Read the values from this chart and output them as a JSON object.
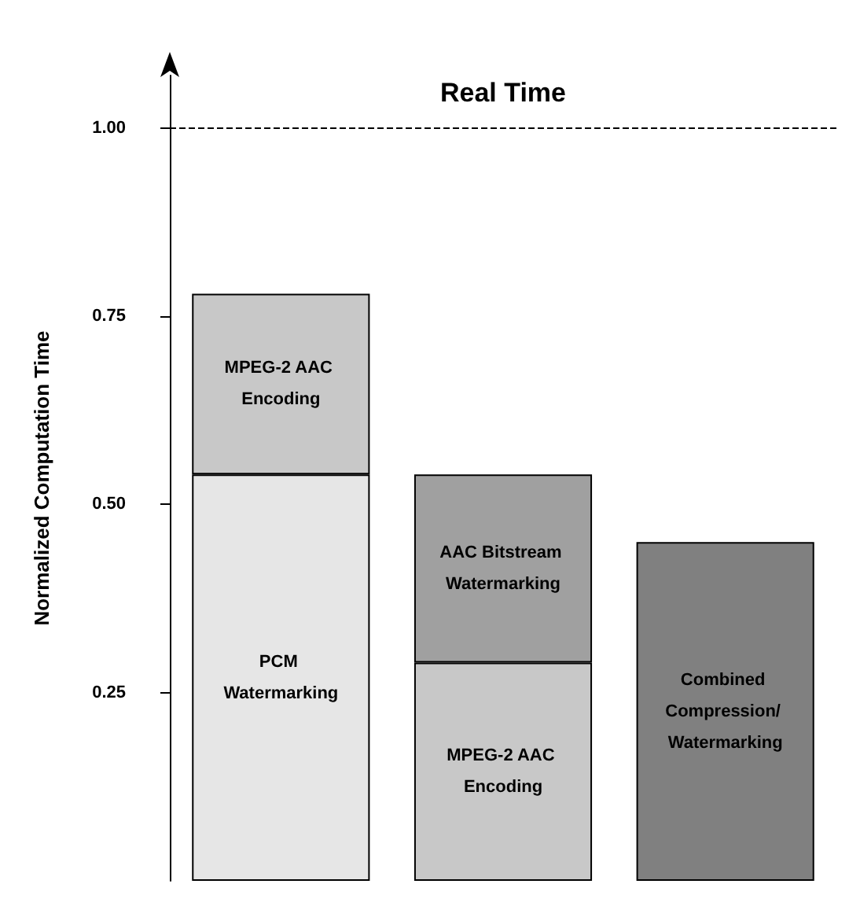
{
  "chart_data": {
    "type": "bar",
    "stacked": true,
    "ylabel": "Normalized Computation Time",
    "categories": [
      null,
      null,
      null
    ],
    "series": [
      {
        "name": "PCM Watermarking",
        "color": "#e6e6e6",
        "values": [
          0.54,
          null,
          null
        ]
      },
      {
        "name": "MPEG-2 AAC Encoding",
        "color": "#c8c8c8",
        "values": [
          0.24,
          0.29,
          null
        ]
      },
      {
        "name": "AAC Bitstream Watermarking",
        "color": "#a0a0a0",
        "values": [
          null,
          0.25,
          null
        ]
      },
      {
        "name": "Combined Compression/ Watermarking",
        "color": "#808080",
        "values": [
          null,
          null,
          0.45
        ]
      }
    ],
    "ylim": [
      0,
      1.07
    ],
    "yticks": [
      0.25,
      {
        "value": 0.5,
        "label": "0.50"
      },
      0.75,
      {
        "value": 1,
        "label": "1.00"
      }
    ],
    "ref_lines": [
      {
        "axis": "y",
        "value": 1,
        "label": "Real Time",
        "line_style": "dashed"
      }
    ],
    "grid": false,
    "legend": false
  }
}
